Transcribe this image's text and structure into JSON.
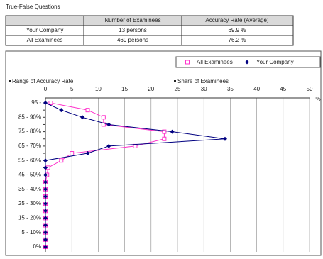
{
  "title": "True-False Questions",
  "table": {
    "header": [
      "Number of Examinees",
      "Accuracy Rate (Average)"
    ],
    "rows": [
      [
        "Your Company",
        "13 persons",
        "69.9 %"
      ],
      [
        "All Examinees",
        "469 persons",
        "76.2 %"
      ]
    ]
  },
  "chart_data": {
    "type": "line",
    "orientation": "horizontal",
    "ylabel": "Range of Accuracy Rate",
    "xlabel": "Share of Examinees",
    "xunit": "%",
    "categories": [
      "95 -",
      null,
      "85 - 90%",
      null,
      "75 - 80%",
      null,
      "65 - 70%",
      null,
      "55 - 60%",
      null,
      "45 - 50%",
      null,
      "35 - 40%",
      null,
      "25 - 30%",
      null,
      "15 - 20%",
      null,
      "5 - 10%",
      null,
      "0%"
    ],
    "xlim": [
      0,
      50
    ],
    "xticks": [
      0,
      5,
      10,
      15,
      20,
      25,
      30,
      35,
      40,
      45,
      50
    ],
    "grid": true,
    "legend": "top-right",
    "series": [
      {
        "name": "All Examinees",
        "color": "#ff33cc",
        "marker": "square",
        "values": [
          1,
          8,
          11,
          11,
          22.5,
          22.5,
          17,
          5,
          3,
          0.5,
          0.3,
          0,
          0,
          0,
          0,
          0,
          0,
          0,
          0,
          0,
          0
        ]
      },
      {
        "name": "Your Company",
        "color": "#000080",
        "marker": "diamond",
        "values": [
          0,
          3,
          7,
          12,
          24,
          34,
          12,
          8,
          0,
          0,
          0,
          0,
          0,
          0,
          0,
          0,
          0,
          0,
          0,
          0,
          0
        ]
      }
    ]
  }
}
